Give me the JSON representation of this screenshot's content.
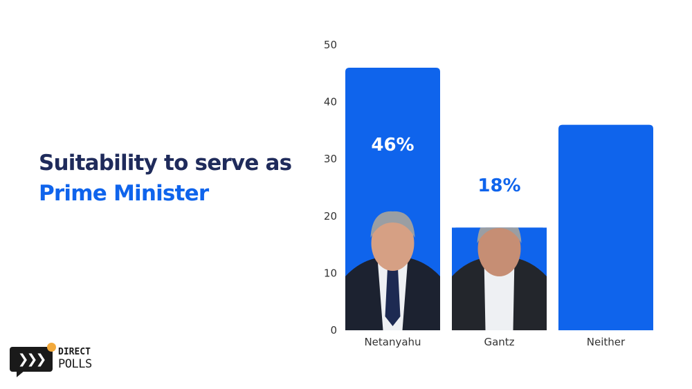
{
  "heading": {
    "line1": "Suitability to serve as",
    "line2": "Prime Minister"
  },
  "logo": {
    "line1": "DIRECT",
    "line2": "POLLS",
    "icon": "chevron-right-triple-icon",
    "dot_color": "#f2a93b"
  },
  "colors": {
    "bar": "#0f64ec",
    "title_dark": "#1f2b5b",
    "title_accent": "#0f64ec",
    "axis_text": "#333333"
  },
  "chart_data": {
    "type": "bar",
    "categories": [
      "Netanyahu",
      "Gantz",
      "Neither"
    ],
    "values": [
      46,
      18,
      36
    ],
    "value_labels": [
      "46%",
      "18%",
      ""
    ],
    "photos": [
      "netanyahu-portrait",
      "gantz-portrait",
      null
    ],
    "ylim": [
      0,
      50
    ],
    "yticks": [
      0,
      10,
      20,
      30,
      40,
      50
    ],
    "grid": false,
    "legend": "none"
  }
}
